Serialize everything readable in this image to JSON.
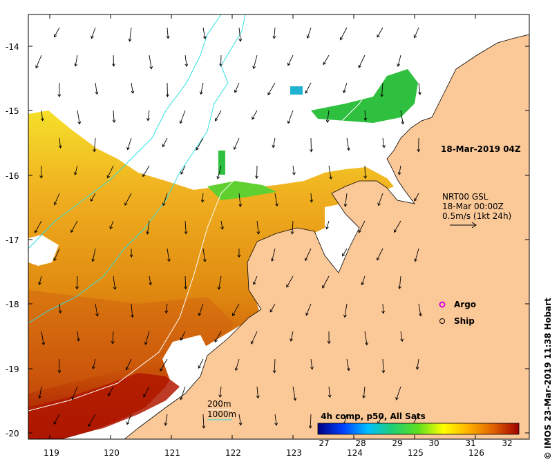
{
  "map": {
    "timestamp": "18-Mar-2019 04Z",
    "lat_labels": [
      "-14",
      "-15",
      "-16",
      "-17",
      "-18",
      "-19",
      "-20"
    ],
    "lon_labels": [
      "119",
      "120",
      "121",
      "122",
      "123",
      "124",
      "125",
      "126"
    ]
  },
  "currents": {
    "source": "NRT00 GSL",
    "time": "18-Mar 00:00Z",
    "scale": "0.5m/s (1kt 24h)"
  },
  "legend": {
    "argo": "Argo",
    "ship": "Ship",
    "depth_200": "200m",
    "depth_1000": "1000m"
  },
  "colorbar": {
    "title": "4h comp, p50, All Sats",
    "ticks": [
      "27",
      "28",
      "29",
      "30",
      "31",
      "32"
    ],
    "colors": [
      "#000080",
      "#0040ff",
      "#00c0ff",
      "#20d070",
      "#60e020",
      "#ffff00",
      "#ffb000",
      "#e06000",
      "#a00000"
    ]
  },
  "credit": "© IMOS 23-Mar-2019 11:38 Hobart",
  "colors": {
    "land": "#fbc898",
    "cyan_contour": "#30e0e0",
    "argo": "#e000e0"
  }
}
